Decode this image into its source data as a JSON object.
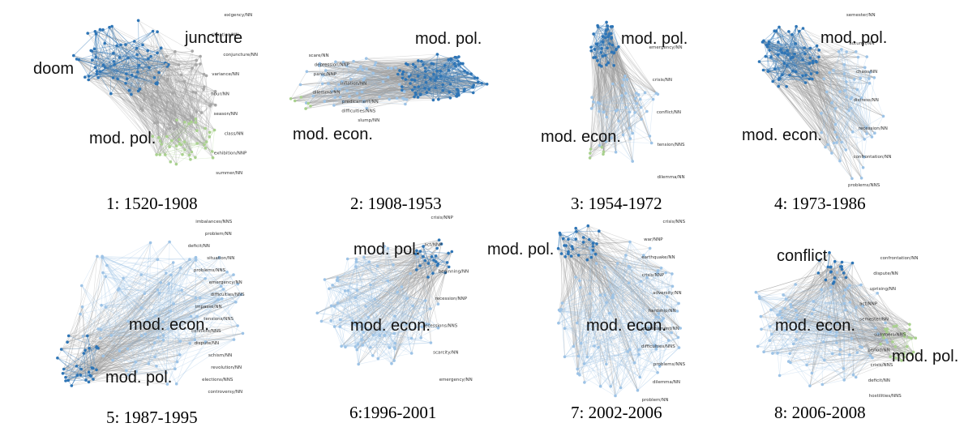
{
  "panels": [
    {
      "caption": "1: 1520-1908",
      "labels": [
        "juncture",
        "doom",
        "mod. pol."
      ],
      "node_labels": [
        "exigency/NN",
        "situation/NN",
        "conjuncture/NN",
        "variance/NN",
        "hour/NN",
        "season/NN",
        "class/NN",
        "exhibition/NNP",
        "summer/NN"
      ],
      "clusters": [
        {
          "name": "blue",
          "color": "#2e75b6"
        },
        {
          "name": "grey",
          "color": "#a6a6a6"
        },
        {
          "name": "green",
          "color": "#a9d18e"
        }
      ]
    },
    {
      "caption": "2: 1908-1953",
      "labels": [
        "mod. pol.",
        "mod. econ."
      ],
      "node_labels": [
        "scare/NN",
        "depression/NNP",
        "panic/NNP",
        "inflation/NN",
        "dilemma/NN",
        "predicament/NN",
        "difficulties/NNS",
        "slump/NN"
      ],
      "clusters": [
        {
          "name": "blue",
          "color": "#2e75b6"
        },
        {
          "name": "lightblue",
          "color": "#9dc3e6"
        },
        {
          "name": "green",
          "color": "#a9d18e"
        }
      ]
    },
    {
      "caption": "3: 1954-1972",
      "labels": [
        "mod. pol.",
        "mod. econ."
      ],
      "node_labels": [
        "emergency/NN",
        "crisis/NN",
        "conflict/NN",
        "tension/NNS",
        "dilemma/NN"
      ],
      "clusters": [
        {
          "name": "blue",
          "color": "#2e75b6"
        },
        {
          "name": "lightblue",
          "color": "#9dc3e6"
        },
        {
          "name": "green",
          "color": "#a9d18e"
        }
      ]
    },
    {
      "caption": "4: 1973-1986",
      "labels": [
        "mod. pol.",
        "mod. econ."
      ],
      "node_labels": [
        "semester/NN",
        "autumn/NN",
        "chaos/NN",
        "distress/NN",
        "recession/NN",
        "confrontation/NN",
        "problems/NNS"
      ],
      "clusters": [
        {
          "name": "blue",
          "color": "#2e75b6"
        },
        {
          "name": "lightblue",
          "color": "#9dc3e6"
        }
      ]
    },
    {
      "caption": "5: 1987-1995",
      "labels": [
        "mod. econ.",
        "mod. pol."
      ],
      "node_labels": [
        "imbalances/NNS",
        "problem/NN",
        "deficit/NN",
        "situation/NN",
        "problems/NNS",
        "emergency/NN",
        "difficulties/NNS",
        "impasse/NN",
        "tensions/NNS",
        "conflicts/NNS",
        "dispute/NN",
        "schism/NN",
        "revolution/NN",
        "elections/NNS",
        "controversy/NN"
      ],
      "clusters": [
        {
          "name": "blue",
          "color": "#2e75b6"
        },
        {
          "name": "lightblue",
          "color": "#9dc3e6"
        }
      ]
    },
    {
      "caption": "6:1996-2001",
      "labels": [
        "mod. pol.",
        "mod. econ."
      ],
      "node_labels": [
        "crisis/NNP",
        "act/NNP",
        "beginning/NN",
        "recession/NNP",
        "recessions/NNS",
        "scarcity/NN",
        "emergency/NN"
      ],
      "clusters": [
        {
          "name": "blue",
          "color": "#2e75b6"
        },
        {
          "name": "lightblue",
          "color": "#9dc3e6"
        }
      ]
    },
    {
      "caption": "7: 2002-2006",
      "labels": [
        "mod. pol.",
        "mod. econ."
      ],
      "node_labels": [
        "crisis/NNS",
        "war/NNP",
        "earthquake/NN",
        "crisis/NNP",
        "adversity/NN",
        "hardship/NN",
        "predicament/NN",
        "difficulties/NNS",
        "problems/NNS",
        "dilemma/NN",
        "problem/NN"
      ],
      "clusters": [
        {
          "name": "blue",
          "color": "#2e75b6"
        },
        {
          "name": "lightblue",
          "color": "#9dc3e6"
        }
      ]
    },
    {
      "caption": "8: 2006-2008",
      "labels": [
        "conflict",
        "mod. econ.",
        "mod. pol."
      ],
      "node_labels": [
        "confrontation/NN",
        "dispute/NN",
        "uprising/NN",
        "act/NNP",
        "semester/NN",
        "summers/NNS",
        "period/NN",
        "crisis/NNS",
        "deficit/NN",
        "hostilities/NNS"
      ],
      "clusters": [
        {
          "name": "blue",
          "color": "#2e75b6"
        },
        {
          "name": "lightblue",
          "color": "#9dc3e6"
        },
        {
          "name": "green",
          "color": "#a9d18e"
        }
      ]
    }
  ]
}
